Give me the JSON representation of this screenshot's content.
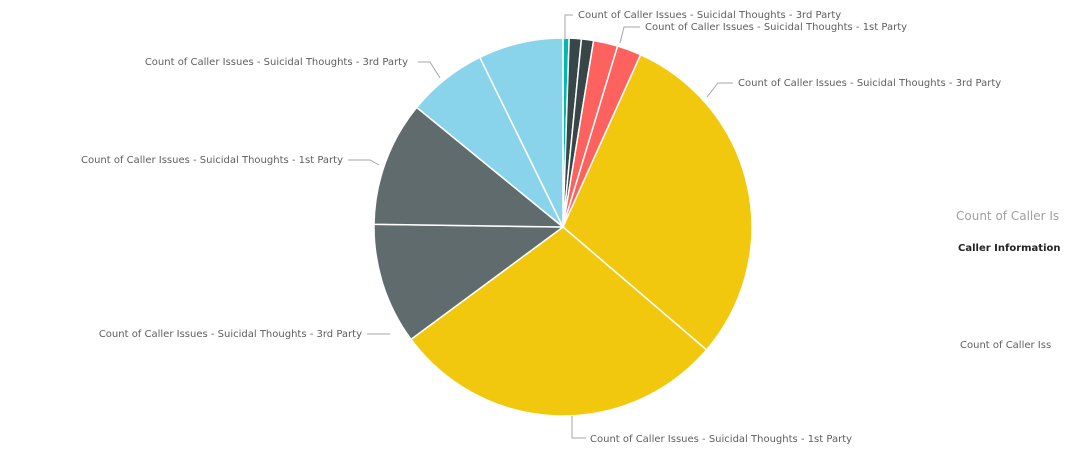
{
  "chart_data": {
    "type": "pie",
    "slices": [
      {
        "label": "",
        "value": 0.5,
        "color": "#01b8aa"
      },
      {
        "label": "Count of Caller Issues - Suicidal Thoughts - 3rd Party",
        "value": 1.0,
        "color": "#374649"
      },
      {
        "label": "",
        "value": 1.0,
        "color": "#374649"
      },
      {
        "label": "Count of Caller Issues - Suicidal Thoughts - 1st Party",
        "value": 2.0,
        "color": "#fd625e"
      },
      {
        "label": "",
        "value": 2.0,
        "color": "#fd625e"
      },
      {
        "label": "Count of Caller Issues - Suicidal Thoughts - 3rd Party",
        "value": 28.5,
        "color": "#f2c80f"
      },
      {
        "label": "Count of Caller Issues - Suicidal Thoughts - 1st Party",
        "value": 27.6,
        "color": "#f2c80f"
      },
      {
        "label": "Count of Caller Issues - Suicidal Thoughts - 3rd Party",
        "value": 10.0,
        "color": "#5f6b6d"
      },
      {
        "label": "Count of Caller Issues - Suicidal Thoughts - 1st Party",
        "value": 10.3,
        "color": "#5f6b6d"
      },
      {
        "label": "Count of Caller Issues - Suicidal Thoughts - 3rd Party",
        "value": 6.6,
        "color": "#8ad4eb"
      },
      {
        "label": "",
        "value": 7.0,
        "color": "#8ad4eb"
      }
    ]
  },
  "legend": {
    "title": "Count of Caller Is",
    "subtitle": "Caller Information",
    "item": "Count of Caller Iss"
  }
}
